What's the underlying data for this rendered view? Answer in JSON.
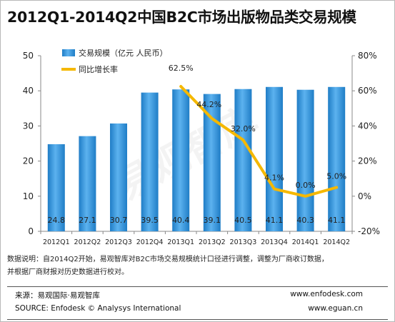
{
  "title": "2012Q1-2014Q2中国B2C市场出版物品类交易规模",
  "watermark": "易观智库",
  "chart_data": {
    "type": "bar",
    "categories": [
      "2012Q1",
      "2012Q2",
      "2012Q3",
      "2012Q4",
      "2013Q1",
      "2013Q2",
      "2013Q3",
      "2013Q4",
      "2014Q1",
      "2014Q2"
    ],
    "series": [
      {
        "name": "交易规模（亿元 人民币）",
        "type": "bar",
        "axis": "left",
        "values": [
          24.8,
          27.1,
          30.7,
          39.5,
          40.4,
          39.1,
          40.5,
          41.1,
          40.3,
          41.1
        ],
        "labels": [
          "24.8",
          "27.1",
          "30.7",
          "39.5",
          "40.4",
          "39.1",
          "40.5",
          "41.1",
          "40.3",
          "41.1"
        ],
        "color": "#2d8fd5"
      },
      {
        "name": "同比增长率",
        "type": "line",
        "axis": "right",
        "x": [
          "2013Q1",
          "2013Q2",
          "2013Q3",
          "2013Q4",
          "2014Q1",
          "2014Q2"
        ],
        "values": [
          62.5,
          44.2,
          32.0,
          4.1,
          0.0,
          5.0
        ],
        "labels": [
          "62.5%",
          "44.2%",
          "32.0%",
          "4.1%",
          "0.0%",
          "5.0%"
        ],
        "color": "#f5b800"
      }
    ],
    "ylim": [
      0,
      50
    ],
    "yticks": [
      "0",
      "10",
      "20",
      "30",
      "40",
      "50"
    ],
    "y2lim": [
      -20,
      80
    ],
    "y2ticks": [
      "-20%",
      "0%",
      "20%",
      "40%",
      "60%",
      "80%"
    ],
    "legend": "top-left",
    "grid": false
  },
  "notes": {
    "line1": "数据说明：自2014Q2开始，易观智库对B2C市场交易规模统计口径进行调整，调整为厂商收订数据，",
    "line2": "并根据厂商财报对历史数据进行校对。"
  },
  "footer": {
    "source_cn": "来源：易观国际·易观智库",
    "source_en": "SOURCE: Enfodesk © Analysys International",
    "site1": "www.enfodesk.com",
    "site2": "www.eguan.cn"
  }
}
